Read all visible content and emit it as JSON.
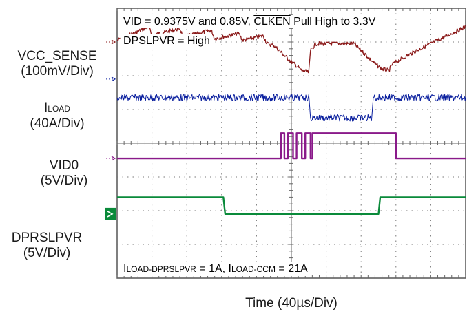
{
  "chart_data": {
    "type": "line",
    "annotations": {
      "line1_prefix": "VID = 0.9375V and 0.85V, ",
      "line1_overline": "CLKEN",
      "line1_suffix": " Pull High to 3.3V",
      "line2": "DPSLPVR = High",
      "bottom_a": "I",
      "bottom_a_sub": "LOAD-DPRSLPVR",
      "bottom_b": " = 1A, I",
      "bottom_b_sub": "LOAD-CCM",
      "bottom_c": " = 21A"
    },
    "xlabel": "Time (40µs/Div)",
    "x_divisions": 10,
    "y_divisions": 8,
    "grid": true,
    "series": [
      {
        "name": "VCC_SENSE",
        "scale_line1": "VCC_SENSE",
        "scale_line2": "(100mV/Div)",
        "color": "#8b1a1a",
        "marker_div": 1.0,
        "points": [
          [
            0,
            0.95
          ],
          [
            0.9,
            0.55
          ],
          [
            1.0,
            0.8
          ],
          [
            1.8,
            0.6
          ],
          [
            1.9,
            0.85
          ],
          [
            2.7,
            0.65
          ],
          [
            2.8,
            0.9
          ],
          [
            3.5,
            0.75
          ],
          [
            3.6,
            0.95
          ],
          [
            4.2,
            0.82
          ],
          [
            4.3,
            1.05
          ],
          [
            4.5,
            1.1
          ],
          [
            4.9,
            1.5
          ],
          [
            5.2,
            1.75
          ],
          [
            5.3,
            1.85
          ],
          [
            5.5,
            1.9
          ],
          [
            5.55,
            1.25
          ],
          [
            5.7,
            1.05
          ],
          [
            6.8,
            1.05
          ],
          [
            7.1,
            1.35
          ],
          [
            7.4,
            1.65
          ],
          [
            7.6,
            1.8
          ],
          [
            7.8,
            1.85
          ],
          [
            7.9,
            1.65
          ],
          [
            8.6,
            1.25
          ],
          [
            9.4,
            0.85
          ],
          [
            10.0,
            0.55
          ]
        ]
      },
      {
        "name": "LOAD",
        "name_prefix": "I",
        "scale_line2": "(40A/Div)",
        "color": "#0a1f9e",
        "marker_div": 2.1,
        "points": [
          [
            0,
            2.65
          ],
          [
            5.5,
            2.65
          ],
          [
            5.55,
            3.25
          ],
          [
            7.3,
            3.25
          ],
          [
            7.35,
            2.65
          ],
          [
            10,
            2.65
          ]
        ]
      },
      {
        "name": "VID0",
        "scale_line1": "VID0",
        "scale_line2": "(5V/Div)",
        "color": "#8a1a8a",
        "marker_div": 4.45,
        "points": [
          [
            0,
            4.45
          ],
          [
            4.7,
            4.45
          ],
          [
            4.7,
            3.7
          ],
          [
            4.8,
            3.7
          ],
          [
            4.8,
            4.45
          ],
          [
            4.9,
            4.45
          ],
          [
            4.9,
            3.7
          ],
          [
            5.05,
            3.7
          ],
          [
            5.05,
            4.45
          ],
          [
            5.15,
            4.45
          ],
          [
            5.15,
            3.7
          ],
          [
            5.3,
            3.7
          ],
          [
            5.3,
            4.45
          ],
          [
            5.4,
            4.45
          ],
          [
            5.4,
            3.7
          ],
          [
            5.55,
            3.7
          ],
          [
            5.55,
            4.45
          ],
          [
            5.6,
            4.45
          ],
          [
            5.6,
            3.7
          ],
          [
            8.0,
            3.7
          ],
          [
            8.0,
            4.45
          ],
          [
            10,
            4.45
          ]
        ]
      },
      {
        "name": "DPRSLPVR",
        "scale_line1": "DPRSLPVR",
        "scale_line2": "(5V/Div)",
        "color": "#0a8a3a",
        "marker_div": 6.1,
        "points": [
          [
            0,
            5.6
          ],
          [
            3.05,
            5.6
          ],
          [
            3.1,
            6.1
          ],
          [
            7.5,
            6.1
          ],
          [
            7.55,
            5.6
          ],
          [
            10,
            5.6
          ]
        ]
      }
    ]
  },
  "icons": [
    "trace-marker-icon"
  ]
}
